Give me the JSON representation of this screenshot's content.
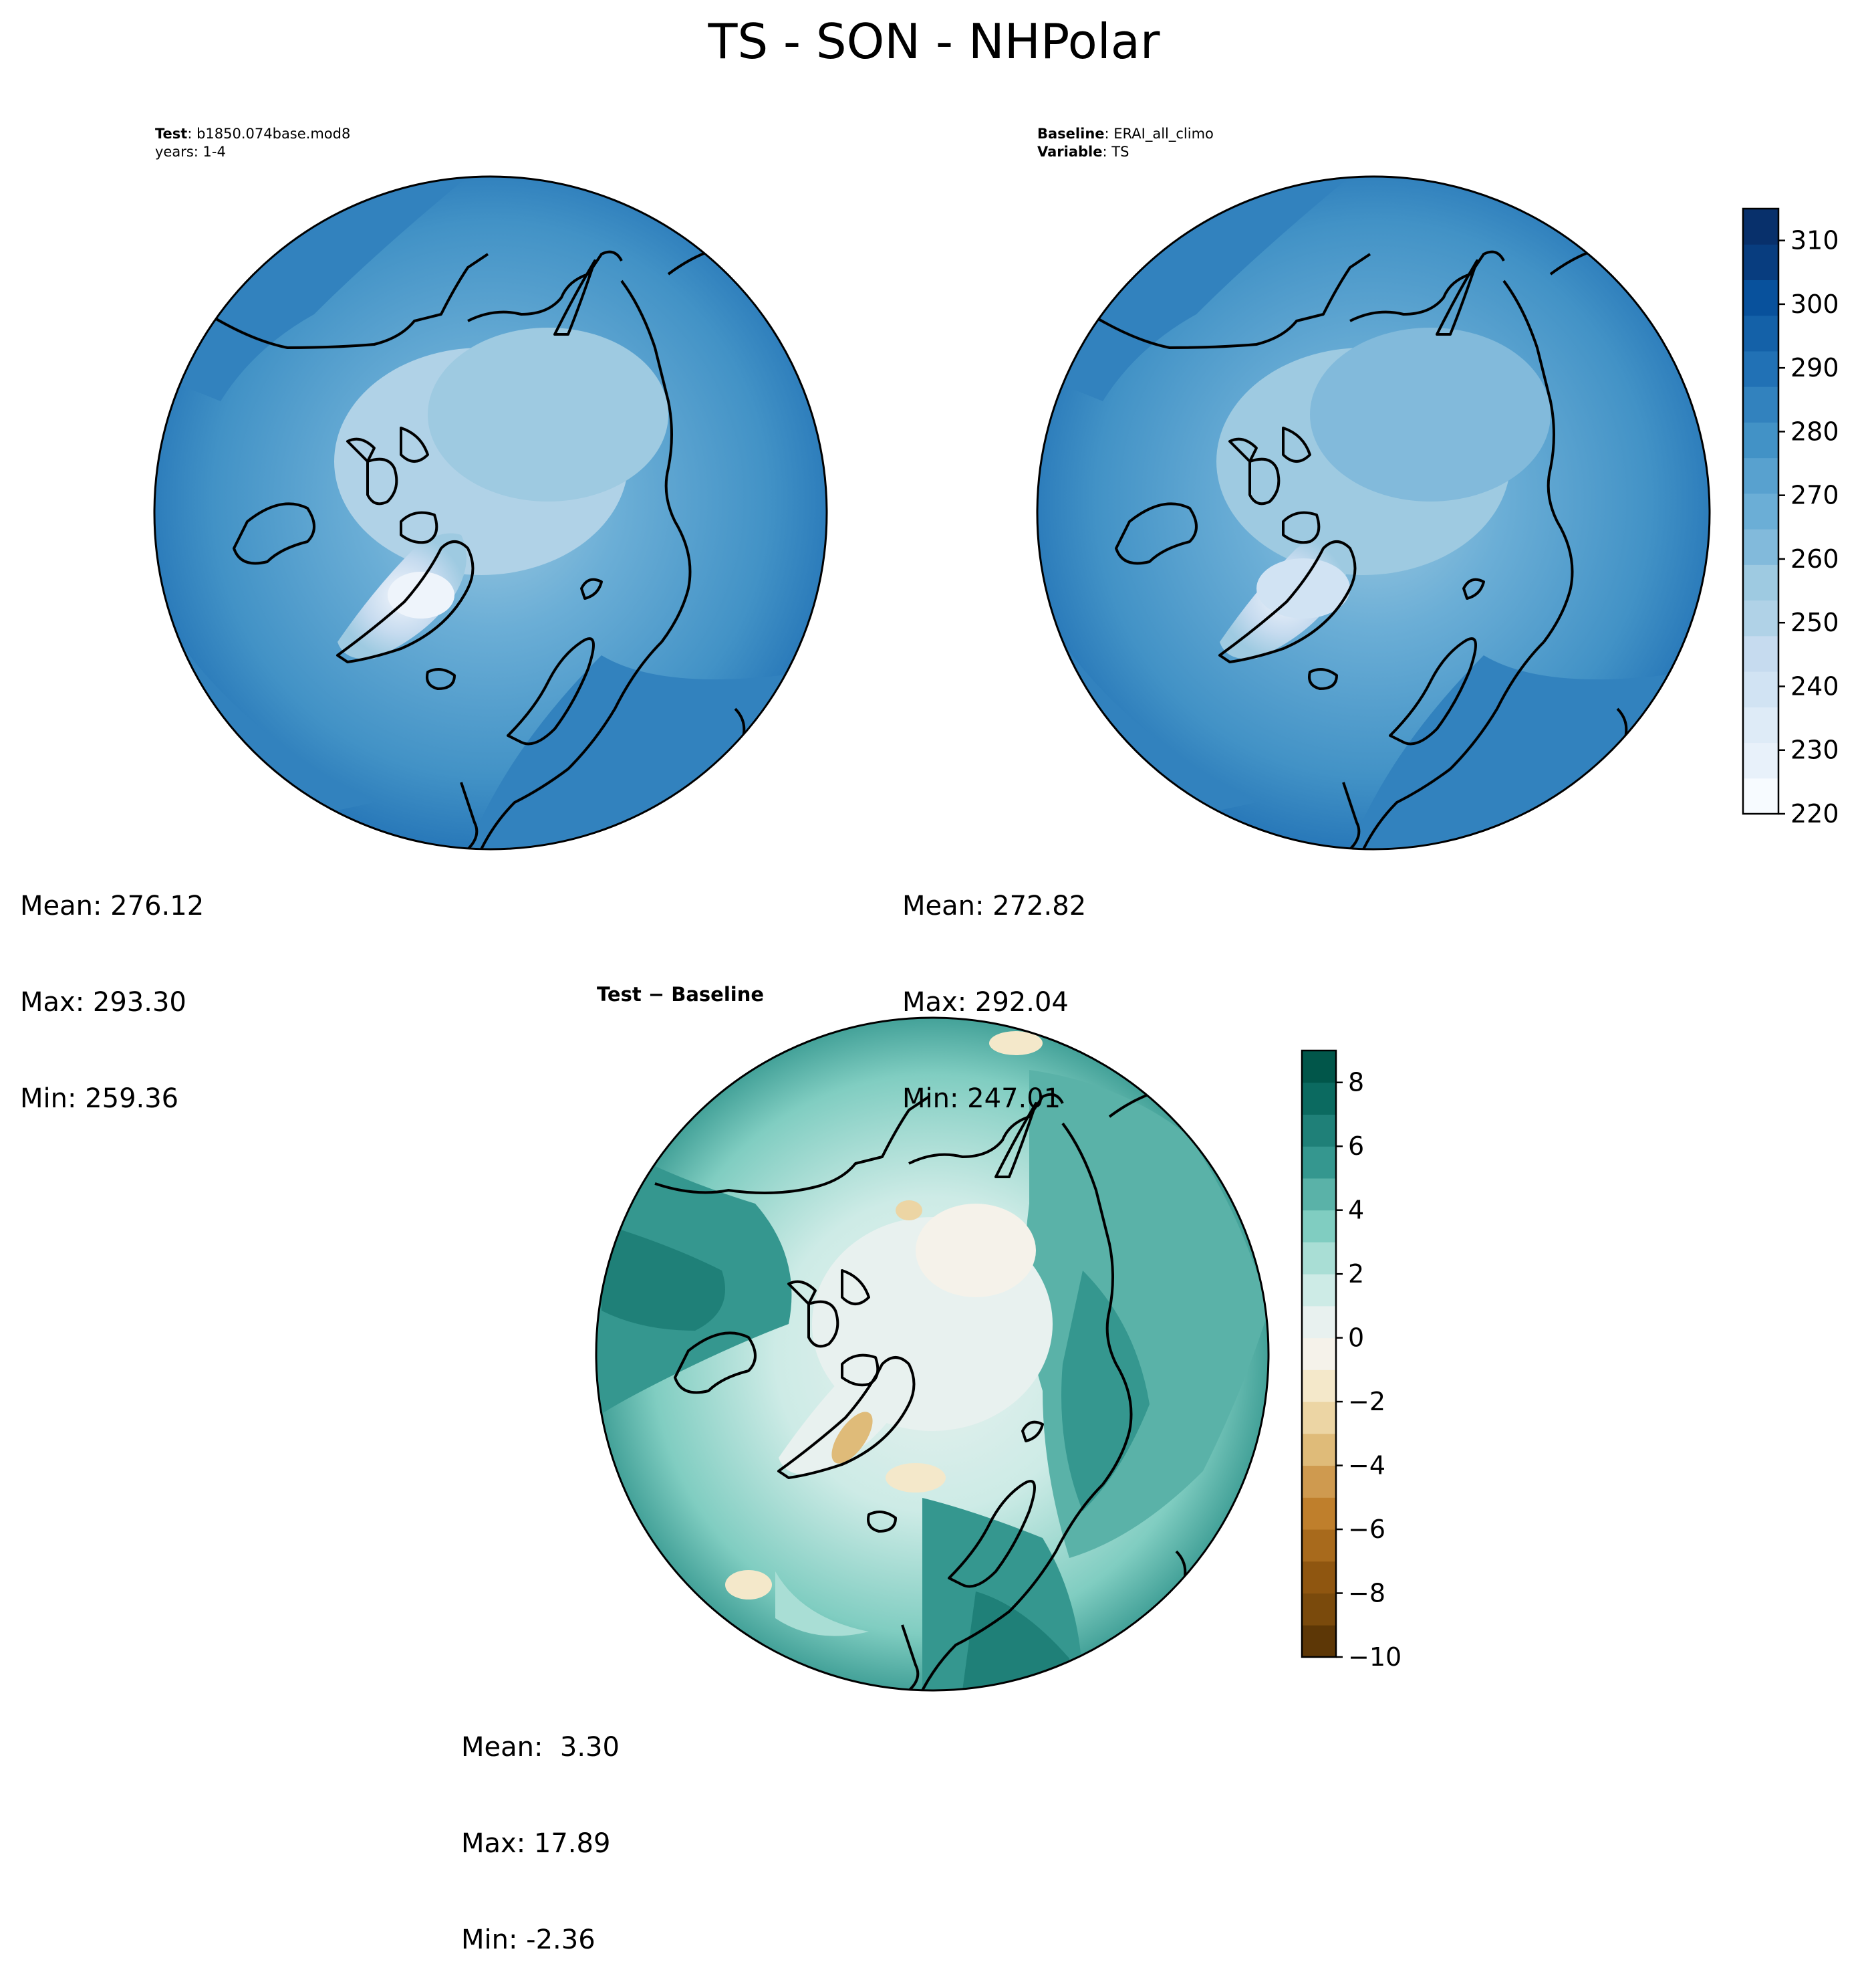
{
  "title": "TS - SON - NHPolar",
  "panels": {
    "test": {
      "label_bold": "Test",
      "label_text": ": b1850.074base.mod8",
      "line2": "years: 1-4",
      "stats": {
        "mean": "Mean: 276.12",
        "max": "Max: 293.30",
        "min": "Min: 259.36"
      }
    },
    "baseline": {
      "label_bold": "Baseline",
      "label_text": ": ERAI_all_climo",
      "line2_bold": "Variable",
      "line2_text": ": TS",
      "stats": {
        "mean": "Mean: 272.82",
        "max": "Max: 292.04",
        "min": "Min: 247.01"
      }
    },
    "diff": {
      "title": "Test − Baseline",
      "stats": {
        "mean": "Mean:  3.30",
        "max": "Max: 17.89",
        "min": "Min: -2.36"
      }
    }
  },
  "colorbars": {
    "abs": {
      "ticks": [
        "220",
        "230",
        "240",
        "250",
        "260",
        "270",
        "280",
        "290",
        "300",
        "310"
      ],
      "range": [
        220,
        315
      ],
      "colormap": "Blues",
      "colors": [
        "#f7fbff",
        "#e8f1fa",
        "#deebf7",
        "#d1e3f3",
        "#c6dbef",
        "#b0d2e7",
        "#9ecae1",
        "#82badb",
        "#6baed6",
        "#58a1cf",
        "#4292c6",
        "#3282be",
        "#2171b5",
        "#1461a8",
        "#08519c",
        "#083d7f",
        "#08306b"
      ]
    },
    "diff": {
      "ticks": [
        "−10",
        "−8",
        "−6",
        "−4",
        "−2",
        "0",
        "2",
        "4",
        "6",
        "8"
      ],
      "range": [
        -10,
        9
      ],
      "colormap": "BrBG",
      "colors": [
        "#5d3706",
        "#7a4a0c",
        "#8f5610",
        "#a86a1c",
        "#bf7f2c",
        "#cf9a4f",
        "#dfbb79",
        "#ecd5a4",
        "#f4e8ca",
        "#f5f2ea",
        "#e8f1ef",
        "#cdebe6",
        "#a9ded5",
        "#80cdc1",
        "#5ab2a8",
        "#35978f",
        "#1f8078",
        "#0b6a60",
        "#01564a"
      ]
    }
  }
}
